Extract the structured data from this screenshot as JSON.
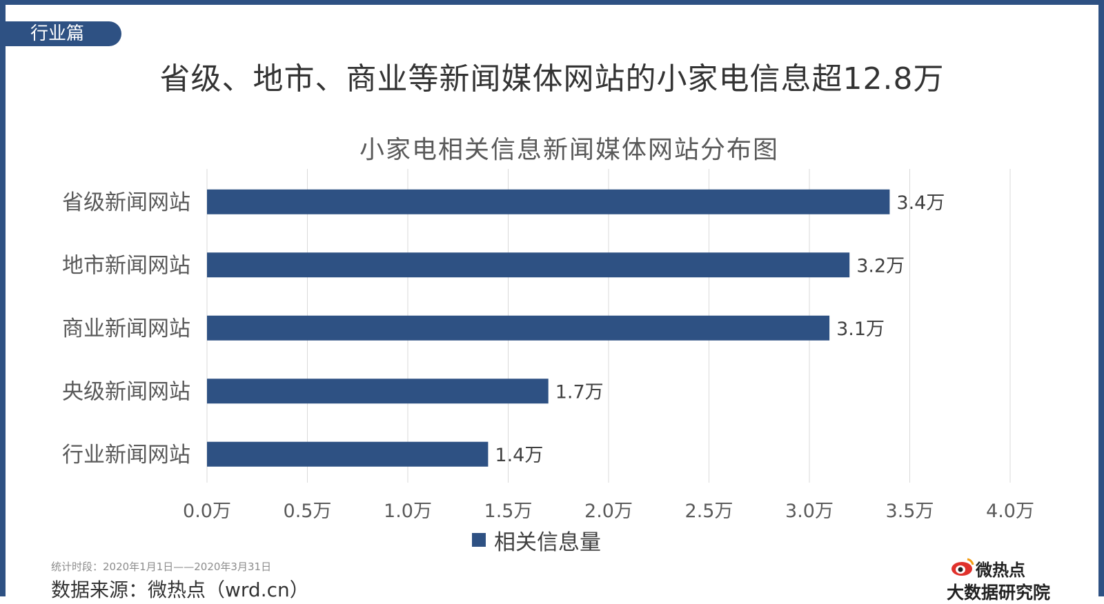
{
  "section_tag": "行业篇",
  "headline": "省级、地市、商业等新闻媒体网站的小家电信息超12.8万",
  "footer": {
    "period": "统计时段：2020年1月1日——2020年3月31日",
    "source": "数据来源：微热点（wrd.cn）"
  },
  "logo": {
    "line1": "微热点",
    "line2": "大数据研究院",
    "icon": "weibo-eye-icon"
  },
  "colors": {
    "frame": "#2e5183",
    "bar": "#2e5183",
    "grid": "#d9d9d9"
  },
  "chart_data": {
    "type": "bar",
    "orientation": "horizontal",
    "title": "小家电相关信息新闻媒体网站分布图",
    "categories": [
      "省级新闻网站",
      "地市新闻网站",
      "商业新闻网站",
      "央级新闻网站",
      "行业新闻网站"
    ],
    "series": [
      {
        "name": "相关信息量",
        "values": [
          3.4,
          3.2,
          3.1,
          1.7,
          1.4
        ]
      }
    ],
    "data_labels": [
      "3.4万",
      "3.2万",
      "3.1万",
      "1.7万",
      "1.4万"
    ],
    "xlim": [
      0,
      4.0
    ],
    "x_ticks": [
      "0.0万",
      "0.5万",
      "1.0万",
      "1.5万",
      "2.0万",
      "2.5万",
      "3.0万",
      "3.5万",
      "4.0万"
    ],
    "grid": true,
    "legend": "bottom-center"
  }
}
